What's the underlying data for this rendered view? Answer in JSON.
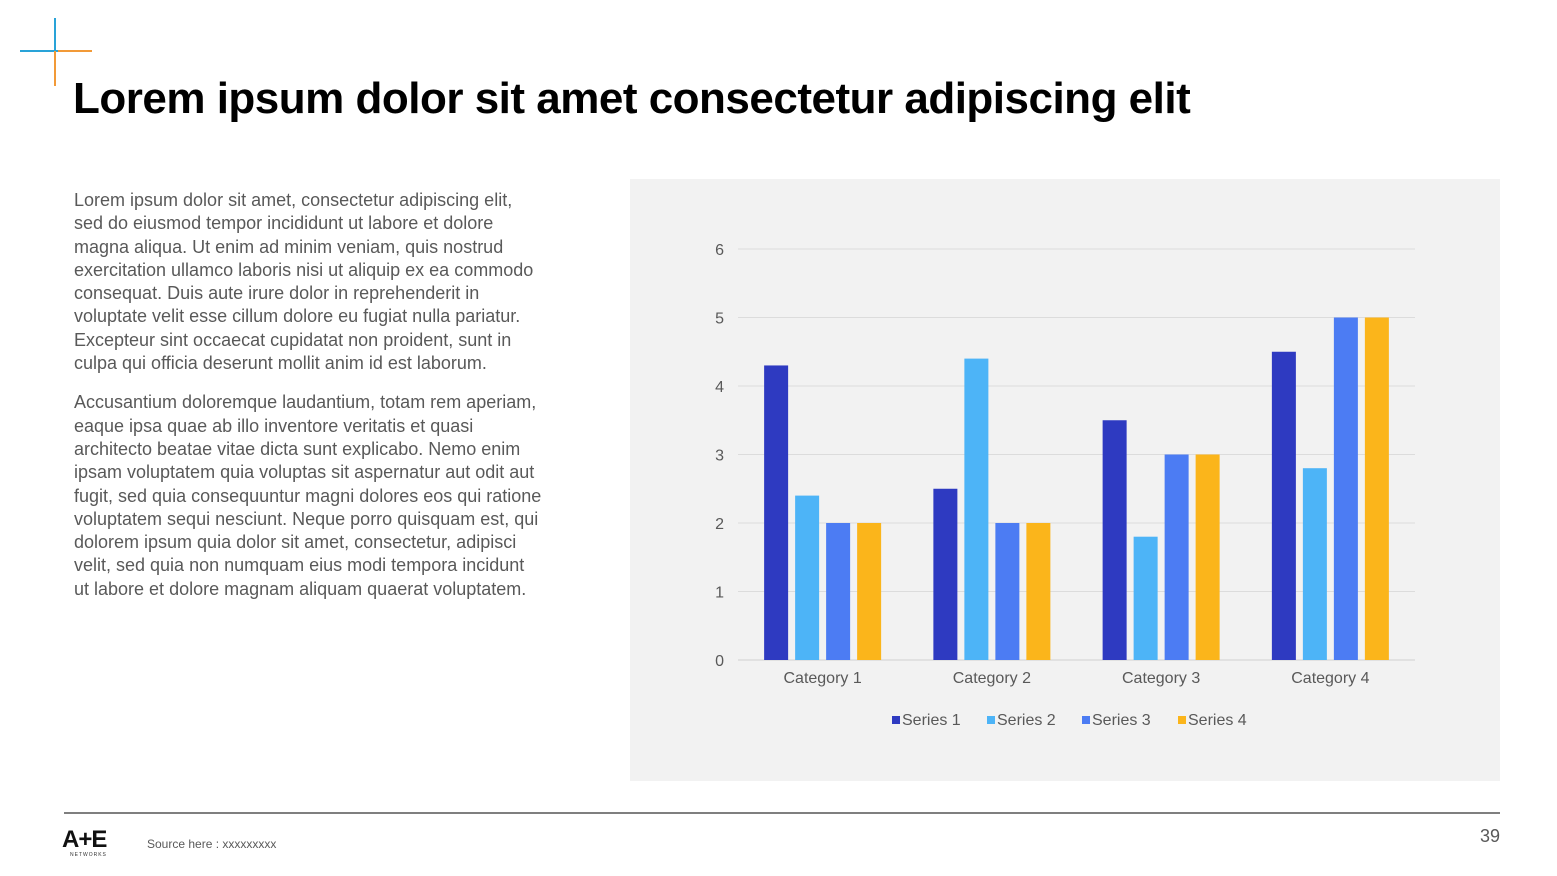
{
  "slide": {
    "title": "Lorem ipsum dolor sit amet consectetur adipiscing elit",
    "paragraphs": [
      "Lorem ipsum dolor sit amet, consectetur adipiscing elit, sed do eiusmod tempor incididunt ut labore et dolore magna aliqua. Ut enim ad minim veniam, quis nostrud exercitation ullamco laboris nisi ut aliquip ex ea commodo consequat. Duis aute irure dolor in reprehenderit in voluptate velit esse cillum dolore eu fugiat nulla pariatur. Excepteur sint occaecat cupidatat non proident, sunt in culpa qui officia deserunt mollit anim id est laborum.",
      "Accusantium doloremque laudantium, totam rem aperiam, eaque ipsa quae ab illo inventore veritatis et quasi architecto beatae vitae dicta sunt explicabo. Nemo enim ipsam voluptatem quia voluptas sit aspernatur aut odit aut fugit, sed quia consequuntur magni dolores eos qui ratione voluptatem sequi nesciunt. Neque porro quisquam est, qui dolorem ipsum quia dolor sit amet, consectetur, adipisci velit, sed quia non numquam eius modi tempora incidunt ut labore et dolore magnam aliquam quaerat voluptatem."
    ],
    "source": "Source here : xxxxxxxxx",
    "page_number": "39",
    "logo_text": "A+E",
    "logo_subtext": "NETWORKS",
    "corner_mark_colors": [
      "#29a3d8",
      "#f29a38"
    ]
  },
  "chart_data": {
    "type": "bar",
    "categories": [
      "Category 1",
      "Category 2",
      "Category 3",
      "Category 4"
    ],
    "series": [
      {
        "name": "Series 1",
        "color": "#2e3ac1",
        "values": [
          4.3,
          2.5,
          3.5,
          4.5
        ]
      },
      {
        "name": "Series 2",
        "color": "#4db4f7",
        "values": [
          2.4,
          4.4,
          1.8,
          2.8
        ]
      },
      {
        "name": "Series 3",
        "color": "#4c7cf3",
        "values": [
          2,
          2,
          3,
          5
        ]
      },
      {
        "name": "Series 4",
        "color": "#fbb51b",
        "values": [
          2,
          2,
          3,
          5
        ]
      }
    ],
    "ylim": [
      0,
      6
    ],
    "yticks": [
      "0",
      "1",
      "2",
      "3",
      "4",
      "5",
      "6"
    ],
    "grid": true,
    "legend": "bottom",
    "background": "#f2f2f2"
  }
}
